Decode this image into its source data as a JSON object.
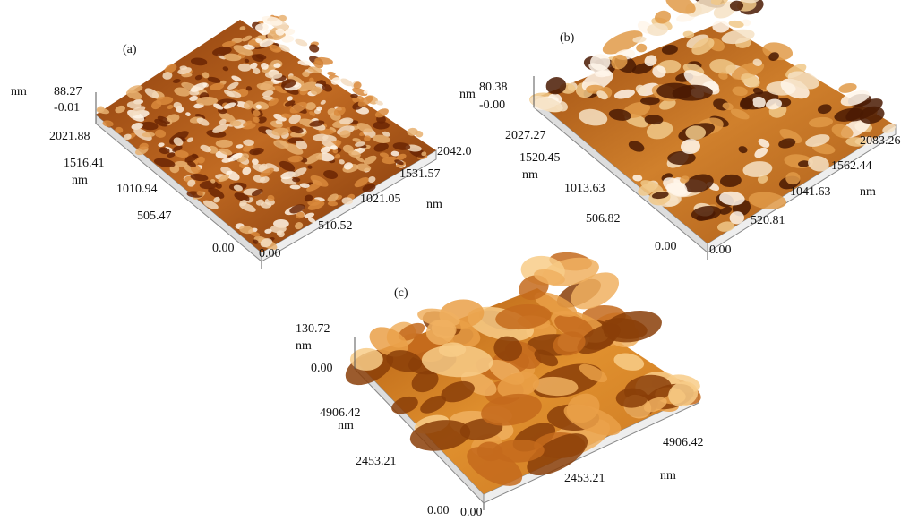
{
  "panels": [
    {
      "label": "(a)",
      "z_unit": "nm",
      "z_max": "88.27",
      "z_min": "-0.01",
      "y_ticks": [
        "2021.88",
        "1516.41",
        "1010.94",
        "505.47",
        "0.00"
      ],
      "y_unit": "nm",
      "x_ticks": [
        "0.00",
        "510.52",
        "1021.05",
        "1531.57",
        "2042.0"
      ],
      "x_unit": "nm"
    },
    {
      "label": "(b)",
      "z_unit": "nm",
      "z_max": "80.38",
      "z_min": "-0.00",
      "y_ticks": [
        "2027.27",
        "1520.45",
        "1013.63",
        "506.82",
        "0.00"
      ],
      "y_unit": "nm",
      "x_ticks": [
        "0.00",
        "520.81",
        "1041.63",
        "1562.44",
        "2083.26"
      ],
      "x_unit": "nm"
    },
    {
      "label": "(c)",
      "z_max": "130.72",
      "z_unit": "nm",
      "z_min": "0.00",
      "y_ticks": [
        "4906.42",
        "2453.21",
        "0.00"
      ],
      "y_unit": "nm",
      "x_ticks": [
        "0.00",
        "2453.21",
        "4906.42"
      ],
      "x_unit": "nm"
    }
  ]
}
